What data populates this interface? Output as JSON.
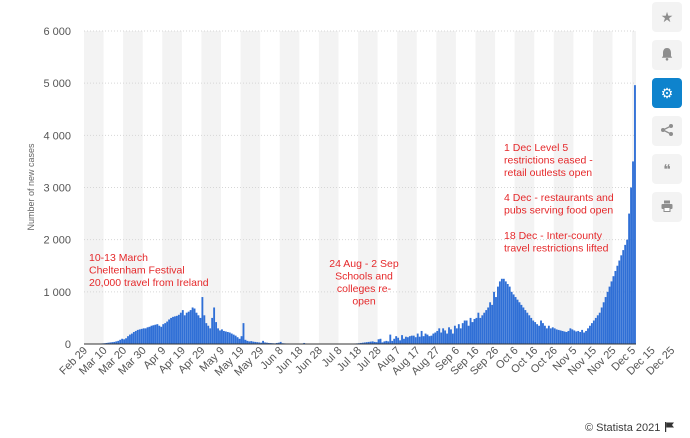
{
  "chart_data": {
    "type": "bar",
    "ylabel": "Number of new cases",
    "xlabel": "",
    "title": "",
    "ylim": [
      0,
      6000
    ],
    "y_ticks": [
      0,
      1000,
      2000,
      3000,
      4000,
      5000,
      6000
    ],
    "y_tick_labels": [
      "0",
      "1 000",
      "2 000",
      "3 000",
      "4 000",
      "5 000",
      "6 000"
    ],
    "x_tick_labels": [
      "Feb 29",
      "Mar 10",
      "Mar 20",
      "Mar 30",
      "Apr 9",
      "Apr 19",
      "Apr 29",
      "May 9",
      "May 19",
      "May 29",
      "Jun 8",
      "Jun 18",
      "Jun 28",
      "Jul 8",
      "Jul 18",
      "Jul 28",
      "Aug 7",
      "Aug 17",
      "Aug 27",
      "Sep 6",
      "Sep 16",
      "Sep 26",
      "Oct 6",
      "Oct 16",
      "Oct 26",
      "Nov 5",
      "Nov 15",
      "Nov 25",
      "Dec 5",
      "Dec 15",
      "Dec 25"
    ],
    "x_tick_spacing_days": 10,
    "bar_color": "#2f6fd6",
    "grid": true,
    "series": [
      {
        "values": [
          0,
          1,
          1,
          1,
          2,
          3,
          5,
          8,
          10,
          12,
          15,
          20,
          25,
          30,
          35,
          40,
          50,
          60,
          80,
          100,
          90,
          110,
          150,
          180,
          200,
          230,
          250,
          270,
          280,
          290,
          300,
          300,
          320,
          330,
          350,
          360,
          370,
          380,
          350,
          330,
          380,
          400,
          430,
          470,
          500,
          520,
          530,
          540,
          560,
          600,
          650,
          550,
          600,
          620,
          650,
          700,
          680,
          600,
          550,
          500,
          900,
          550,
          400,
          350,
          300,
          500,
          700,
          420,
          300,
          260,
          280,
          250,
          240,
          230,
          220,
          200,
          180,
          160,
          130,
          100,
          150,
          400,
          80,
          60,
          50,
          55,
          45,
          40,
          35,
          30,
          25,
          60,
          30,
          25,
          20,
          18,
          15,
          12,
          20,
          25,
          40,
          15,
          12,
          10,
          10,
          8,
          8,
          7,
          6,
          5,
          8,
          10,
          20,
          10,
          8,
          6,
          5,
          5,
          5,
          4,
          4,
          4,
          3,
          3,
          3,
          3,
          3,
          3,
          3,
          3,
          3,
          3,
          3,
          3,
          4,
          5,
          6,
          8,
          10,
          12,
          15,
          20,
          25,
          30,
          35,
          40,
          45,
          50,
          40,
          35,
          90,
          100,
          30,
          50,
          60,
          50,
          180,
          60,
          100,
          150,
          120,
          70,
          170,
          100,
          140,
          130,
          150,
          160,
          160,
          130,
          200,
          140,
          250,
          150,
          200,
          180,
          150,
          160,
          200,
          220,
          250,
          300,
          220,
          300,
          260,
          200,
          320,
          280,
          200,
          350,
          300,
          380,
          300,
          400,
          450,
          450,
          350,
          500,
          420,
          480,
          500,
          600,
          500,
          550,
          600,
          650,
          700,
          800,
          750,
          1000,
          900,
          1100,
          1200,
          1250,
          1250,
          1200,
          1150,
          1100,
          1000,
          950,
          900,
          850,
          800,
          750,
          700,
          650,
          600,
          550,
          500,
          450,
          420,
          380,
          350,
          450,
          400,
          350,
          300,
          350,
          300,
          320,
          300,
          280,
          270,
          260,
          250,
          240,
          230,
          250,
          300,
          280,
          260,
          240,
          250,
          230,
          270,
          220,
          250,
          300,
          350,
          400,
          450,
          500,
          550,
          600,
          700,
          800,
          900,
          1000,
          1100,
          1200,
          1300,
          1400,
          1500,
          1600,
          1700,
          1800,
          1900,
          2000,
          2500,
          3000,
          3500,
          4962
        ]
      }
    ],
    "annotations": [
      {
        "text": [
          "10-13 March",
          "Cheltenham Festival",
          "20,000 travel from Ireland"
        ],
        "align": "left"
      },
      {
        "text": [
          "24 Aug - 2 Sep",
          "Schools and",
          "colleges re-",
          "open"
        ],
        "align": "center"
      },
      {
        "text": [
          "1 Dec Level 5",
          "restrictions eased -",
          "retail outlests open"
        ],
        "align": "left"
      },
      {
        "text": [
          "4 Dec - restaurants and",
          "pubs serving food open"
        ],
        "align": "left"
      },
      {
        "text": [
          "18 Dec - Inter-county",
          "travel restrictions lifted"
        ],
        "align": "left"
      }
    ],
    "annotation_color": "#e5292b"
  },
  "sidebar": {
    "buttons": [
      {
        "name": "star-icon",
        "glyph": "★",
        "active": false
      },
      {
        "name": "bell-icon",
        "glyph": "bell",
        "active": false
      },
      {
        "name": "gear-icon",
        "glyph": "⚙",
        "active": true
      },
      {
        "name": "share-icon",
        "glyph": "share",
        "active": false
      },
      {
        "name": "quote-icon",
        "glyph": "❝",
        "active": false
      },
      {
        "name": "print-icon",
        "glyph": "print",
        "active": false
      }
    ]
  },
  "footer": {
    "credit": "© Statista 2021"
  }
}
